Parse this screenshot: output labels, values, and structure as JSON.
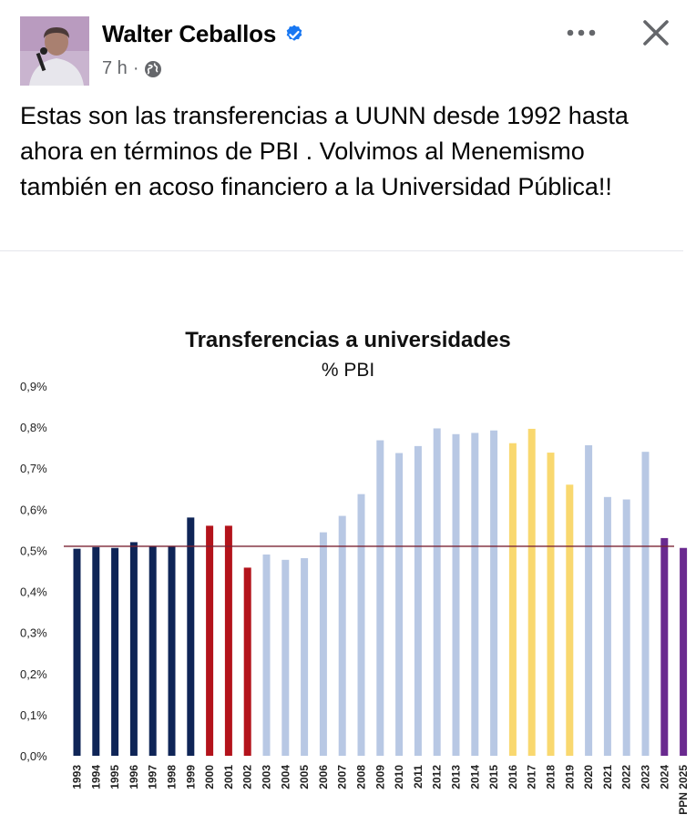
{
  "post": {
    "author": "Walter Ceballos",
    "time": "7 h",
    "separator": "·",
    "text": "Estas son las transferencias a UUNN desde 1992 hasta ahora en términos de PBI . Volvimos al Menemismo también en acoso financiero a la Universidad Pública!!"
  },
  "icons": {
    "verified": "verified-badge-icon",
    "audience": "globe-icon",
    "more": "more-options-icon",
    "close": "close-icon"
  },
  "colors": {
    "verified": "#1877f2",
    "meta": "#65676b",
    "menem_dark": "#0f2557",
    "dela_rua_red": "#b3131b",
    "light_blue": "#b8c8e4",
    "macri_yellow": "#f9d86f",
    "milei_purple": "#6a2a8f",
    "reference_line": "#7a2333"
  },
  "chart_data": {
    "type": "bar",
    "title": "Transferencias a universidades",
    "subtitle": "% PBI",
    "categories": [
      "1993",
      "1994",
      "1995",
      "1996",
      "1997",
      "1998",
      "1999",
      "2000",
      "2001",
      "2002",
      "2003",
      "2004",
      "2005",
      "2006",
      "2007",
      "2008",
      "2009",
      "2010",
      "2011",
      "2012",
      "2013",
      "2014",
      "2015",
      "2016",
      "2017",
      "2018",
      "2019",
      "2020",
      "2021",
      "2022",
      "2023",
      "2024",
      "PPN 2025"
    ],
    "values": [
      0.504,
      0.508,
      0.506,
      0.52,
      0.51,
      0.51,
      0.58,
      0.56,
      0.56,
      0.458,
      0.49,
      0.477,
      0.481,
      0.544,
      0.584,
      0.637,
      0.768,
      0.737,
      0.754,
      0.797,
      0.783,
      0.786,
      0.792,
      0.761,
      0.796,
      0.738,
      0.66,
      0.756,
      0.63,
      0.624,
      0.74,
      0.53,
      0.506
    ],
    "bar_colors": [
      "#0f2557",
      "#0f2557",
      "#0f2557",
      "#0f2557",
      "#0f2557",
      "#0f2557",
      "#0f2557",
      "#b3131b",
      "#b3131b",
      "#b3131b",
      "#b8c8e4",
      "#b8c8e4",
      "#b8c8e4",
      "#b8c8e4",
      "#b8c8e4",
      "#b8c8e4",
      "#b8c8e4",
      "#b8c8e4",
      "#b8c8e4",
      "#b8c8e4",
      "#b8c8e4",
      "#b8c8e4",
      "#b8c8e4",
      "#f9d86f",
      "#f9d86f",
      "#f9d86f",
      "#f9d86f",
      "#b8c8e4",
      "#b8c8e4",
      "#b8c8e4",
      "#b8c8e4",
      "#6a2a8f",
      "#6a2a8f"
    ],
    "ylim": [
      0,
      0.9
    ],
    "yticks": [
      0,
      0.1,
      0.2,
      0.3,
      0.4,
      0.5,
      0.6,
      0.7,
      0.8,
      0.9
    ],
    "ytick_labels": [
      "0,0%",
      "0,1%",
      "0,2%",
      "0,3%",
      "0,4%",
      "0,5%",
      "0,6%",
      "0,7%",
      "0,8%",
      "0,9%"
    ],
    "reference_line": 0.51,
    "grid": false,
    "xlabel": "",
    "ylabel": ""
  }
}
